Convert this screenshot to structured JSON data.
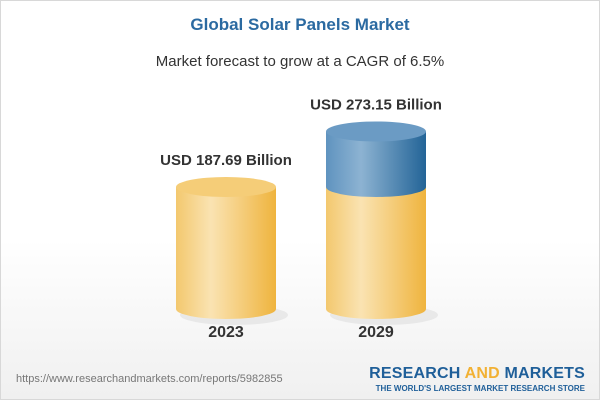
{
  "header": {
    "title": "Global Solar Panels Market",
    "subtitle": "Market forecast to grow at a CAGR of 6.5%"
  },
  "chart_data": {
    "type": "bar",
    "style": "3d-cylinder",
    "categories": [
      "2023",
      "2029"
    ],
    "values": [
      187.69,
      273.15
    ],
    "data_labels": [
      "USD 187.69 Billion",
      "USD 273.15 Billion"
    ],
    "unit": "USD Billion",
    "grid": false,
    "colors": {
      "base": "#f2c062",
      "growth": "#3d78aa"
    }
  },
  "footer": {
    "url": "https://www.researchandmarkets.com/reports/5982855",
    "logo_part1": "RESEARCH ",
    "logo_part2": "AND",
    "logo_part3": " MARKETS",
    "tagline": "THE WORLD'S LARGEST MARKET RESEARCH STORE"
  }
}
